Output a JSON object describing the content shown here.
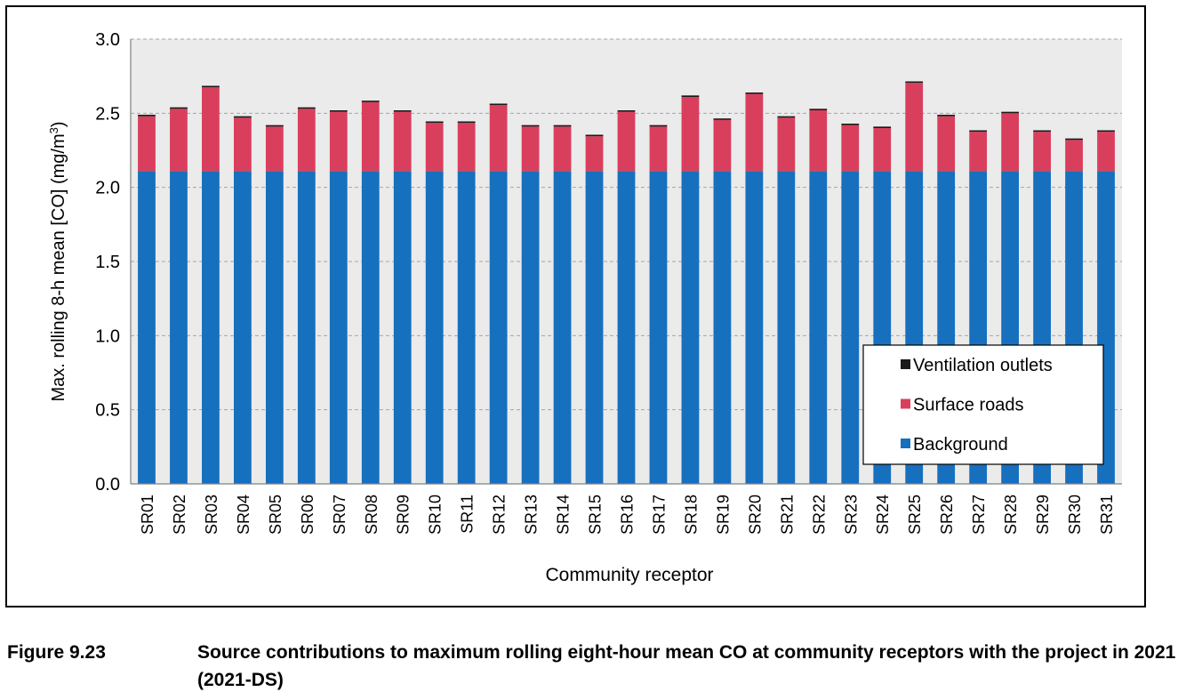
{
  "figure": {
    "number": "Figure 9.23",
    "caption": "Source contributions to maximum rolling eight-hour mean CO at community receptors with the project in 2021 (2021-DS)"
  },
  "chart_data": {
    "type": "bar",
    "stacked": true,
    "xlabel": "Community receptor",
    "ylabel_main": "Max. rolling 8-h mean [CO] (mg/m",
    "ylabel_sup": "3",
    "ylabel_close": ")",
    "ylim": [
      0,
      3.0
    ],
    "yticks": [
      "0.0",
      "0.5",
      "1.0",
      "1.5",
      "2.0",
      "2.5",
      "3.0"
    ],
    "grid": true,
    "legend_position": "bottom-right",
    "colors": {
      "plot_background": "#ebebeb",
      "Background": "#1670be",
      "Surface roads": "#d93f5c",
      "Ventilation outlets": "#1a1a1a"
    },
    "categories": [
      "SR01",
      "SR02",
      "SR03",
      "SR04",
      "SR05",
      "SR06",
      "SR07",
      "SR08",
      "SR09",
      "SR10",
      "SR11",
      "SR12",
      "SR13",
      "SR14",
      "SR15",
      "SR16",
      "SR17",
      "SR18",
      "SR19",
      "SR20",
      "SR21",
      "SR22",
      "SR23",
      "SR24",
      "SR25",
      "SR26",
      "SR27",
      "SR28",
      "SR29",
      "SR30",
      "SR31"
    ],
    "series": [
      {
        "name": "Background",
        "values": [
          2.11,
          2.11,
          2.11,
          2.11,
          2.11,
          2.11,
          2.11,
          2.11,
          2.11,
          2.11,
          2.11,
          2.11,
          2.11,
          2.11,
          2.11,
          2.11,
          2.11,
          2.11,
          2.11,
          2.11,
          2.11,
          2.11,
          2.11,
          2.11,
          2.11,
          2.11,
          2.11,
          2.11,
          2.11,
          2.11,
          2.11
        ]
      },
      {
        "name": "Surface roads",
        "values": [
          0.37,
          0.42,
          0.565,
          0.36,
          0.3,
          0.42,
          0.4,
          0.465,
          0.4,
          0.325,
          0.325,
          0.445,
          0.3,
          0.3,
          0.235,
          0.4,
          0.3,
          0.5,
          0.345,
          0.52,
          0.36,
          0.41,
          0.31,
          0.29,
          0.595,
          0.37,
          0.265,
          0.39,
          0.265,
          0.21,
          0.265
        ]
      },
      {
        "name": "Ventilation outlets",
        "values": [
          0.01,
          0.01,
          0.01,
          0.01,
          0.01,
          0.01,
          0.01,
          0.01,
          0.01,
          0.01,
          0.01,
          0.01,
          0.01,
          0.01,
          0.01,
          0.01,
          0.01,
          0.01,
          0.01,
          0.01,
          0.01,
          0.01,
          0.01,
          0.01,
          0.01,
          0.01,
          0.01,
          0.01,
          0.01,
          0.01,
          0.01
        ]
      }
    ],
    "legend_order": [
      "Ventilation outlets",
      "Surface roads",
      "Background"
    ]
  }
}
